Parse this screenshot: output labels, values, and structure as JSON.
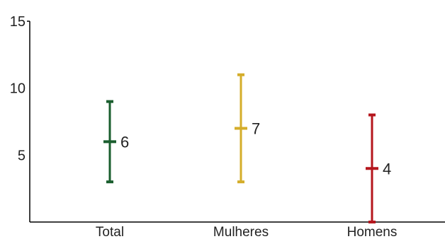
{
  "chart_data": {
    "type": "errorbar",
    "title": "",
    "xlabel": "",
    "ylabel": "",
    "ylim": [
      0,
      15
    ],
    "y_ticks": [
      5,
      10,
      15
    ],
    "grid": false,
    "categories": [
      "Total",
      "Mulheres",
      "Homens"
    ],
    "series": [
      {
        "category": "Total",
        "low": 3,
        "value": 6,
        "high": 9,
        "label": "6",
        "color": "#1a5e2e"
      },
      {
        "category": "Mulheres",
        "low": 3,
        "value": 7,
        "high": 11,
        "label": "7",
        "color": "#d4ad2a"
      },
      {
        "category": "Homens",
        "low": 0,
        "value": 4,
        "high": 8,
        "label": "4",
        "color": "#b5161d"
      }
    ]
  }
}
